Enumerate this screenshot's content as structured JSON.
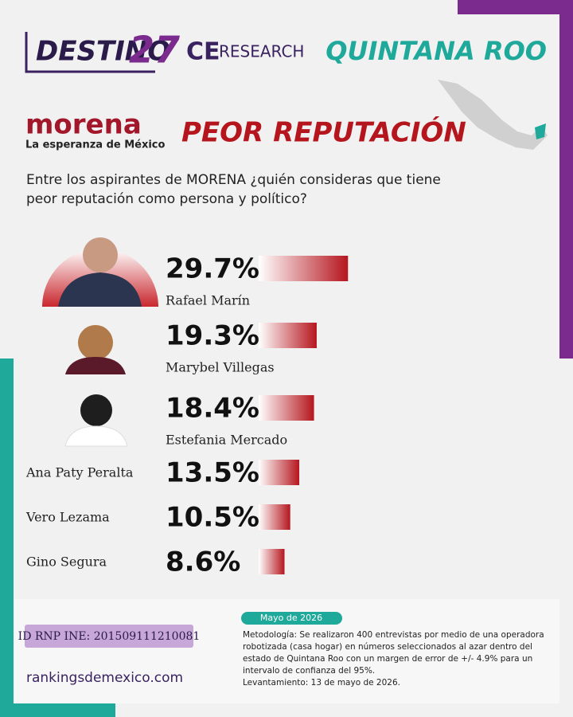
{
  "header": {
    "brand": "DESTINO",
    "brand_number": "27",
    "partner_ce": "CE",
    "partner_research": "RESEARCH",
    "state": "QUINTANA ROO",
    "party": "morena",
    "party_slogan": "La esperanza de México",
    "topic": "PEOR REPUTACIÓN"
  },
  "question": [
    "Entre los aspirantes de MORENA ¿quién consideras que tiene",
    "peor reputación como persona y político?"
  ],
  "chart_data": {
    "type": "bar",
    "categories": [
      "Rafael Marín",
      "Marybel Villegas",
      "Estefania Mercado",
      "Ana Paty Peralta",
      "Vero Lezama",
      "Gino Segura"
    ],
    "values": [
      29.7,
      19.3,
      18.4,
      13.5,
      10.5,
      8.6
    ],
    "value_labels": [
      "29.7%",
      "19.3%",
      "18.4%",
      "13.5%",
      "10.5%",
      "8.6%"
    ],
    "color": "#b5161e"
  },
  "footer": {
    "id": "ID RNP INE: 201509111210081",
    "website": "rankingsdemexico.com",
    "date": "Mayo de 2026",
    "methodology": [
      "Metodología: Se realizaron 400 entrevistas por medio de una operadora",
      "robotizada (casa hogar) en números seleccionados al azar dentro del",
      "estado de Quintana Roo con un margen de error de +/- 4.9% para un",
      "intervalo de confianza del 95%.",
      "Levantamiento: 13 de mayo de 2026."
    ]
  }
}
